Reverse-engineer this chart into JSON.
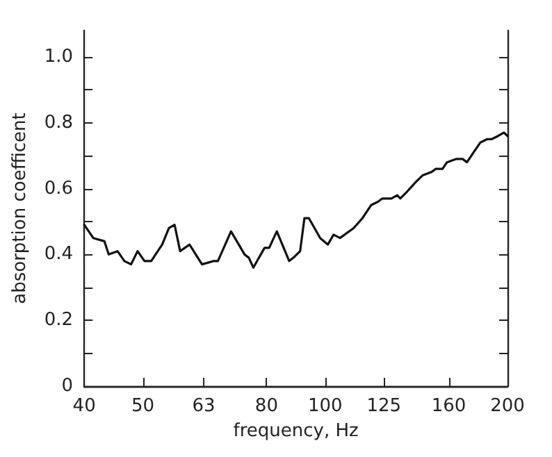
{
  "chart_data": {
    "type": "line",
    "xlabel": "frequency, Hz",
    "ylabel": "absorption coefficent",
    "log": "x",
    "grid": false,
    "legend": false,
    "marker": "none",
    "line_style": "solid",
    "xlim": [
      40,
      200
    ],
    "xticks": [
      40,
      50,
      63,
      80,
      100,
      125,
      160,
      200
    ],
    "ylim": [
      0,
      1.08
    ],
    "yticks": [
      0,
      {
        "value": 0.1,
        "label": null
      },
      0.2,
      {
        "value": 0.3,
        "label": null
      },
      0.4,
      {
        "value": 0.5,
        "label": null
      },
      0.6,
      {
        "value": 0.7,
        "label": null
      },
      0.8,
      {
        "value": 0.9,
        "label": null
      },
      {
        "value": 1.0,
        "label": "1.0"
      }
    ],
    "x": [
      40,
      41.4,
      43.2,
      43.9,
      45.4,
      46.6,
      47.8,
      49.0,
      50.3,
      51.6,
      53.8,
      55.2,
      56.4,
      57.6,
      59.7,
      62.6,
      65.4,
      66.5,
      69.9,
      73.6,
      74.8,
      76.1,
      79.4,
      80.8,
      83.2,
      87.2,
      88.6,
      90.9,
      92.4,
      94.0,
      98.1,
      101.0,
      103.2,
      105.8,
      111.4,
      115.2,
      119.1,
      122.2,
      124.3,
      128.6,
      131.5,
      133.0,
      136.4,
      141.1,
      144.8,
      149.7,
      152.3,
      156.2,
      158.9,
      164.4,
      168.6,
      171.4,
      175.8,
      180.4,
      185.0,
      188.1,
      193.0,
      197.3,
      200
    ],
    "series": [
      {
        "color": "#111111",
        "values": [
          0.49,
          0.45,
          0.44,
          0.4,
          0.41,
          0.38,
          0.37,
          0.41,
          0.38,
          0.38,
          0.43,
          0.48,
          0.49,
          0.41,
          0.43,
          0.37,
          0.38,
          0.38,
          0.47,
          0.4,
          0.39,
          0.36,
          0.42,
          0.42,
          0.47,
          0.38,
          0.39,
          0.41,
          0.51,
          0.51,
          0.45,
          0.43,
          0.46,
          0.45,
          0.48,
          0.51,
          0.55,
          0.56,
          0.57,
          0.57,
          0.58,
          0.57,
          0.59,
          0.62,
          0.64,
          0.65,
          0.66,
          0.66,
          0.68,
          0.69,
          0.69,
          0.68,
          0.71,
          0.74,
          0.75,
          0.75,
          0.76,
          0.77,
          0.76
        ]
      }
    ]
  }
}
